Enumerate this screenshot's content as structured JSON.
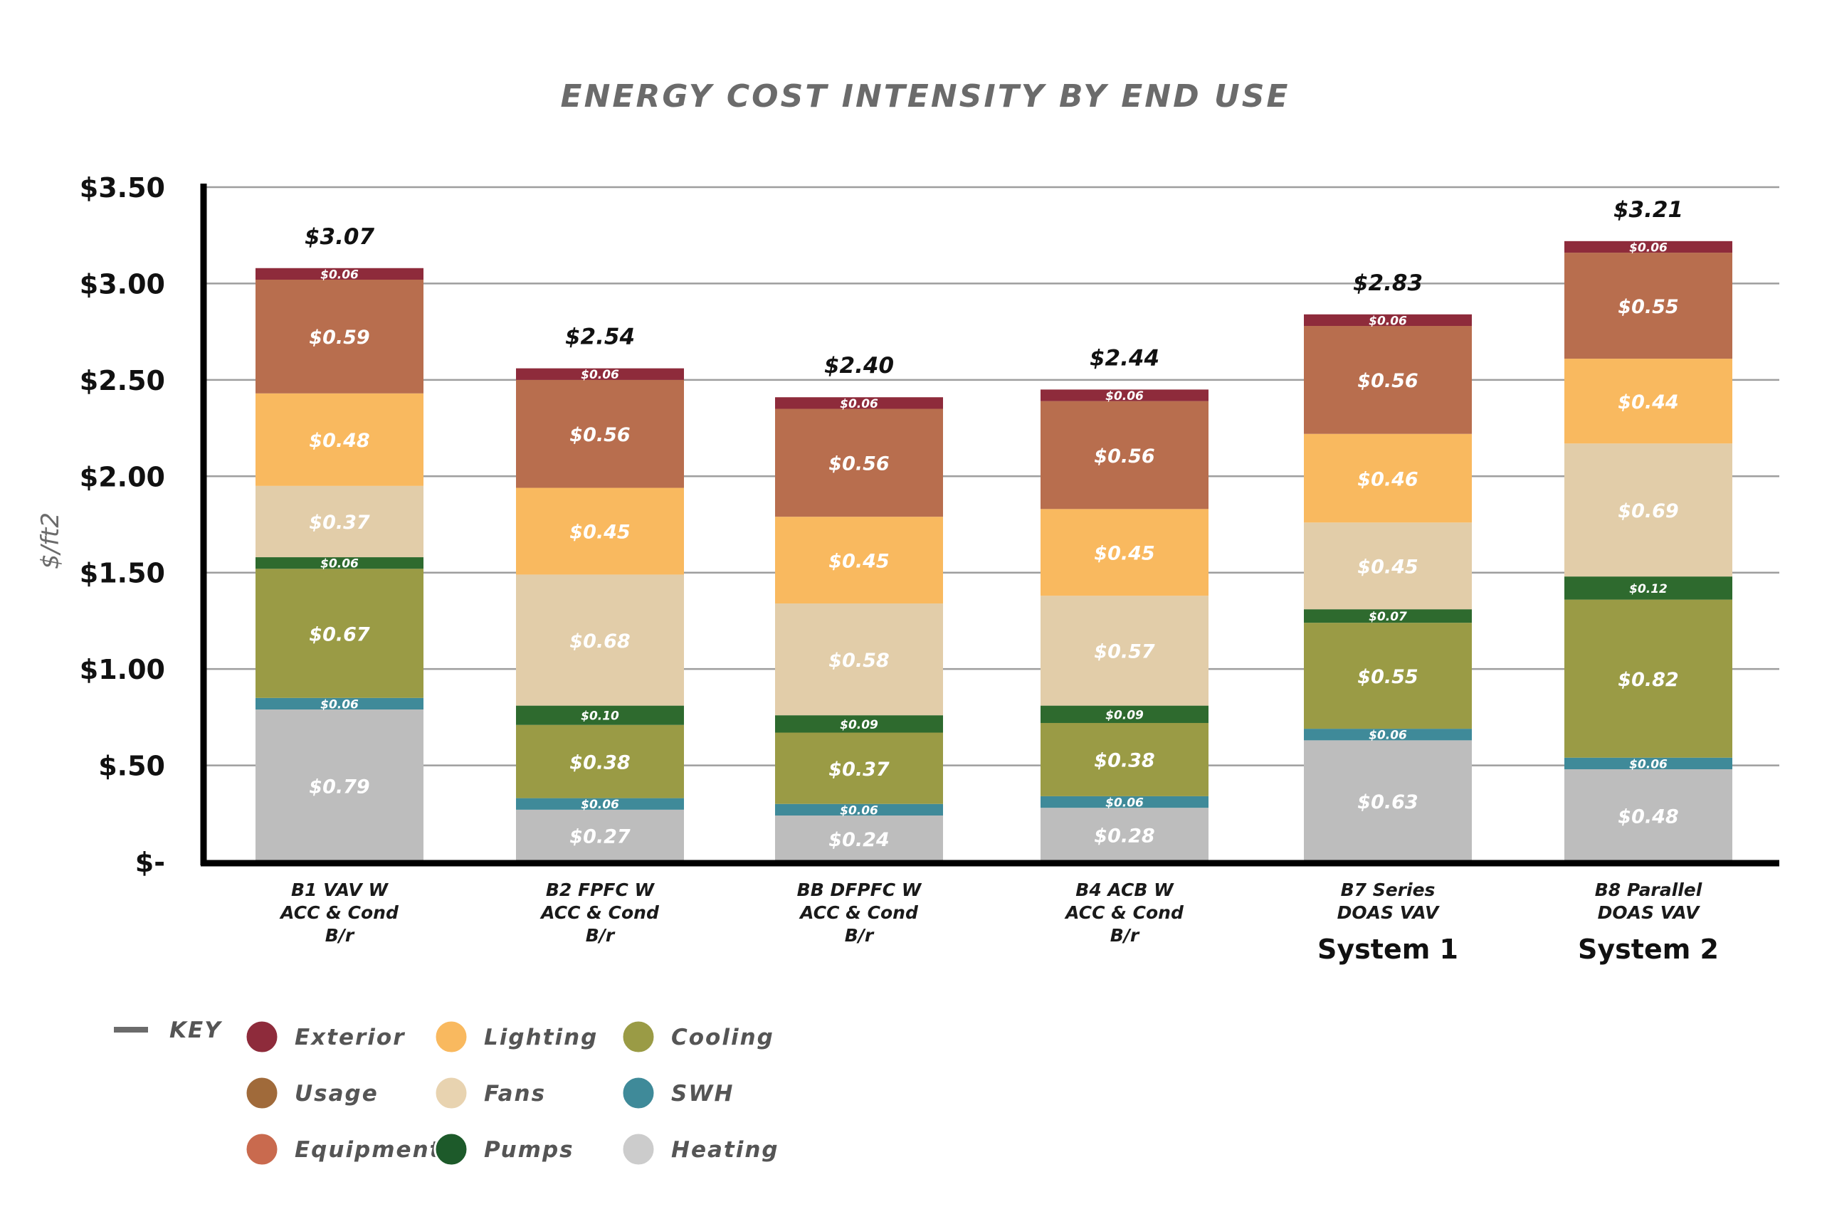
{
  "chart_data": {
    "type": "bar",
    "stacked": true,
    "title": "ENERGY COST INTENSITY BY END USE",
    "ylabel": "$/ft2",
    "ylim": [
      0,
      3.5
    ],
    "yticks": [
      "$-",
      "$.50",
      "$1.00",
      "$1.50",
      "$2.00",
      "$2.50",
      "$3.00",
      "$3.50"
    ],
    "grid": true,
    "categories": [
      {
        "lines": [
          "B1 VAV W",
          "ACC & Cond",
          "B/r"
        ],
        "system": ""
      },
      {
        "lines": [
          "B2 FPFC W",
          "ACC & Cond",
          "B/r"
        ],
        "system": ""
      },
      {
        "lines": [
          "BB DFPFC W",
          "ACC & Cond",
          "B/r"
        ],
        "system": ""
      },
      {
        "lines": [
          "B4 ACB W",
          "ACC & Cond",
          "B/r"
        ],
        "system": ""
      },
      {
        "lines": [
          "B7 Series",
          "DOAS VAV"
        ],
        "system": "System 1"
      },
      {
        "lines": [
          "B8 Parallel",
          "DOAS VAV"
        ],
        "system": "System 2"
      }
    ],
    "totals": [
      "$3.07",
      "$2.54",
      "$2.40",
      "$2.44",
      "$2.83",
      "$3.21"
    ],
    "series": [
      {
        "key": "Heating",
        "color": "#bdbdbd",
        "values": [
          0.79,
          0.27,
          0.24,
          0.28,
          0.63,
          0.48
        ],
        "labels": [
          "$0.79",
          "$0.27",
          "$0.24",
          "$0.28",
          "$0.63",
          "$0.48"
        ]
      },
      {
        "key": "SWH",
        "color": "#3f8a99",
        "values": [
          0.06,
          0.06,
          0.06,
          0.06,
          0.06,
          0.06
        ],
        "labels": [
          "$0.06",
          "$0.06",
          "$0.06",
          "$0.06",
          "$0.06",
          "$0.06"
        ]
      },
      {
        "key": "Cooling",
        "color": "#9a9b45",
        "values": [
          0.67,
          0.38,
          0.37,
          0.38,
          0.55,
          0.82
        ],
        "labels": [
          "$0.67",
          "$0.38",
          "$0.37",
          "$0.38",
          "$0.55",
          "$0.82"
        ]
      },
      {
        "key": "Pumps",
        "color": "#2e6a2e",
        "values": [
          0.06,
          0.1,
          0.09,
          0.09,
          0.07,
          0.12
        ],
        "labels": [
          "$0.06",
          "$0.10",
          "$0.09",
          "$0.09",
          "$0.07",
          "$0.12"
        ]
      },
      {
        "key": "Fans",
        "color": "#e2cda9",
        "values": [
          0.37,
          0.68,
          0.58,
          0.57,
          0.45,
          0.69
        ],
        "labels": [
          "$0.37",
          "$0.68",
          "$0.58",
          "$0.57",
          "$0.45",
          "$0.69"
        ]
      },
      {
        "key": "Lighting",
        "color": "#f9b95f",
        "values": [
          0.48,
          0.45,
          0.45,
          0.45,
          0.46,
          0.44
        ],
        "labels": [
          "$0.48",
          "$0.45",
          "$0.45",
          "$0.45",
          "$0.46",
          "$0.44"
        ]
      },
      {
        "key": "Equipment",
        "color": "#b86e4e",
        "values": [
          0.59,
          0.56,
          0.56,
          0.56,
          0.56,
          0.55
        ],
        "labels": [
          "$0.59",
          "$0.56",
          "$0.56",
          "$0.56",
          "$0.56",
          "$0.55"
        ]
      },
      {
        "key": "Exterior",
        "color": "#8e2b3b",
        "values": [
          0.06,
          0.06,
          0.06,
          0.06,
          0.06,
          0.06
        ],
        "labels": [
          "$0.06",
          "$0.06",
          "$0.06",
          "$0.06",
          "$0.06",
          "$0.06"
        ]
      }
    ],
    "legend": {
      "placement": "bottom-left",
      "title": "KEY",
      "entries": [
        {
          "label": "Exterior",
          "color": "#8e2b3b"
        },
        {
          "label": "Usage",
          "color": "#a06a3a"
        },
        {
          "label": "Equipment",
          "color": "#c96a4e"
        },
        {
          "label": "Lighting",
          "color": "#f9b95f"
        },
        {
          "label": "Fans",
          "color": "#e8d3b0"
        },
        {
          "label": "Pumps",
          "color": "#1d5a2a"
        },
        {
          "label": "Cooling",
          "color": "#9a9b45"
        },
        {
          "label": "SWH",
          "color": "#3f8a99"
        },
        {
          "label": "Heating",
          "color": "#cccccc"
        }
      ]
    }
  }
}
